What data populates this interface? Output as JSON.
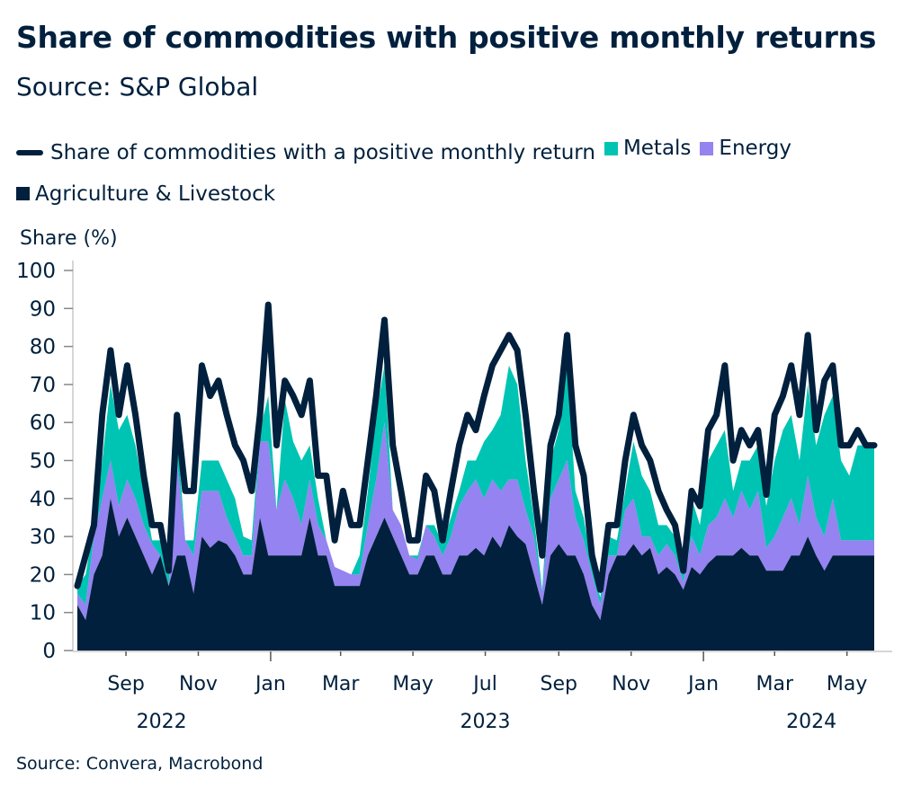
{
  "title": "Share of commodities with positive monthly returns",
  "subtitle": "Source: S&P Global",
  "footer": "Source: Convera, Macrobond",
  "colors": {
    "line": "#00203d",
    "metals": "#00c4b3",
    "energy": "#9483f0",
    "agriculture": "#00203d"
  },
  "chart_data": {
    "type": "area",
    "stacked": true,
    "ylabel": "Share (%)",
    "ylim": [
      0,
      100
    ],
    "yticks": [
      0,
      10,
      20,
      30,
      40,
      50,
      60,
      70,
      80,
      90,
      100
    ],
    "xlim": [
      "2022-07-22",
      "2024-05-24"
    ],
    "xticks": [
      {
        "date": "2022-09-01",
        "label": "Sep"
      },
      {
        "date": "2022-11-01",
        "label": "Nov"
      },
      {
        "date": "2023-01-01",
        "label": "Jan"
      },
      {
        "date": "2023-03-01",
        "label": "Mar"
      },
      {
        "date": "2023-05-01",
        "label": "May"
      },
      {
        "date": "2023-07-01",
        "label": "Jul"
      },
      {
        "date": "2023-09-01",
        "label": "Sep"
      },
      {
        "date": "2023-11-01",
        "label": "Nov"
      },
      {
        "date": "2024-01-01",
        "label": "Jan"
      },
      {
        "date": "2024-03-01",
        "label": "Mar"
      },
      {
        "date": "2024-05-01",
        "label": "May"
      }
    ],
    "year_labels": [
      {
        "date": "2022-10-01",
        "label": "2022"
      },
      {
        "date": "2023-07-01",
        "label": "2023"
      },
      {
        "date": "2024-04-01",
        "label": "2024"
      }
    ],
    "grid": false,
    "legend": "top",
    "x": [
      "2022-07-22",
      "2022-07-29",
      "2022-08-05",
      "2022-08-12",
      "2022-08-19",
      "2022-08-26",
      "2022-09-02",
      "2022-09-09",
      "2022-09-16",
      "2022-09-23",
      "2022-09-30",
      "2022-10-07",
      "2022-10-14",
      "2022-10-21",
      "2022-10-28",
      "2022-11-04",
      "2022-11-11",
      "2022-11-18",
      "2022-11-25",
      "2022-12-02",
      "2022-12-09",
      "2022-12-16",
      "2022-12-23",
      "2022-12-30",
      "2023-01-06",
      "2023-01-13",
      "2023-01-20",
      "2023-01-27",
      "2023-02-03",
      "2023-02-10",
      "2023-02-17",
      "2023-02-24",
      "2023-03-03",
      "2023-03-10",
      "2023-03-17",
      "2023-03-24",
      "2023-03-31",
      "2023-04-07",
      "2023-04-14",
      "2023-04-21",
      "2023-04-28",
      "2023-05-05",
      "2023-05-12",
      "2023-05-19",
      "2023-05-26",
      "2023-06-02",
      "2023-06-09",
      "2023-06-16",
      "2023-06-23",
      "2023-06-30",
      "2023-07-07",
      "2023-07-14",
      "2023-07-21",
      "2023-07-28",
      "2023-08-04",
      "2023-08-11",
      "2023-08-18",
      "2023-08-25",
      "2023-09-01",
      "2023-09-08",
      "2023-09-15",
      "2023-09-22",
      "2023-09-29",
      "2023-10-06",
      "2023-10-13",
      "2023-10-20",
      "2023-10-27",
      "2023-11-03",
      "2023-11-10",
      "2023-11-17",
      "2023-11-24",
      "2023-12-01",
      "2023-12-08",
      "2023-12-15",
      "2023-12-22",
      "2023-12-29",
      "2024-01-05",
      "2024-01-12",
      "2024-01-19",
      "2024-01-26",
      "2024-02-02",
      "2024-02-09",
      "2024-02-16",
      "2024-02-23",
      "2024-03-01",
      "2024-03-08",
      "2024-03-15",
      "2024-03-22",
      "2024-03-29",
      "2024-04-05",
      "2024-04-12",
      "2024-04-19",
      "2024-04-26",
      "2024-05-03",
      "2024-05-10",
      "2024-05-17",
      "2024-05-24"
    ],
    "series": [
      {
        "name": "Agriculture & Livestock",
        "kind": "area",
        "values": [
          12,
          8,
          20,
          25,
          40,
          30,
          35,
          30,
          25,
          20,
          25,
          17,
          25,
          25,
          15,
          30,
          27,
          29,
          28,
          25,
          20,
          20,
          35,
          25,
          25,
          25,
          25,
          25,
          35,
          25,
          25,
          17,
          17,
          17,
          17,
          25,
          30,
          35,
          30,
          25,
          20,
          20,
          25,
          25,
          20,
          20,
          25,
          25,
          27,
          25,
          30,
          27,
          33,
          30,
          28,
          20,
          12,
          25,
          28,
          25,
          25,
          20,
          12,
          8,
          20,
          25,
          25,
          28,
          25,
          27,
          20,
          22,
          20,
          16,
          22,
          20,
          23,
          25,
          25,
          25,
          27,
          25,
          25,
          21,
          21,
          21,
          25,
          25,
          30,
          25,
          21,
          25,
          25,
          25,
          25,
          25,
          25
        ]
      },
      {
        "name": "Energy",
        "kind": "area",
        "values": [
          3,
          4,
          10,
          15,
          10,
          8,
          10,
          10,
          8,
          8,
          0,
          0,
          25,
          4,
          10,
          12,
          15,
          13,
          7,
          5,
          5,
          5,
          20,
          30,
          12,
          20,
          15,
          8,
          10,
          8,
          4,
          5,
          4,
          3,
          3,
          8,
          15,
          25,
          7,
          8,
          5,
          4,
          8,
          5,
          5,
          10,
          13,
          17,
          18,
          15,
          15,
          15,
          12,
          15,
          9,
          10,
          3,
          15,
          17,
          25,
          10,
          9,
          8,
          4,
          5,
          0,
          12,
          12,
          5,
          3,
          5,
          6,
          5,
          2,
          8,
          5,
          10,
          10,
          15,
          10,
          15,
          12,
          17,
          6,
          9,
          14,
          15,
          8,
          16,
          10,
          9,
          15,
          4,
          4,
          4,
          4,
          4
        ]
      },
      {
        "name": "Metals",
        "kind": "area",
        "values": [
          2,
          8,
          3,
          10,
          20,
          20,
          17,
          14,
          9,
          1,
          4,
          3,
          8,
          0,
          4,
          8,
          8,
          8,
          10,
          10,
          5,
          4,
          3,
          12,
          0,
          21,
          15,
          17,
          9,
          7,
          0,
          0,
          0,
          0,
          5,
          9,
          17,
          15,
          0,
          0,
          0,
          1,
          0,
          3,
          3,
          5,
          4,
          8,
          5,
          15,
          13,
          20,
          30,
          25,
          13,
          5,
          1,
          10,
          13,
          25,
          7,
          6,
          2,
          2,
          5,
          4,
          5,
          15,
          16,
          12,
          8,
          5,
          5,
          2,
          10,
          8,
          17,
          19,
          18,
          7,
          8,
          13,
          12,
          11,
          20,
          23,
          22,
          17,
          24,
          19,
          32,
          27,
          21,
          17,
          25,
          25,
          25
        ]
      },
      {
        "name": "Share of commodities with a positive monthly return",
        "kind": "line",
        "values": [
          17,
          25,
          33,
          62,
          79,
          62,
          75,
          62,
          46,
          33,
          33,
          21,
          62,
          42,
          42,
          75,
          67,
          71,
          62,
          54,
          50,
          42,
          62,
          91,
          54,
          71,
          67,
          62,
          71,
          46,
          46,
          29,
          42,
          33,
          33,
          50,
          67,
          87,
          54,
          42,
          29,
          29,
          46,
          42,
          29,
          42,
          54,
          62,
          58,
          67,
          75,
          79,
          83,
          79,
          62,
          42,
          25,
          54,
          62,
          83,
          54,
          46,
          25,
          16,
          33,
          33,
          50,
          62,
          54,
          50,
          42,
          37,
          33,
          21,
          42,
          38,
          58,
          62,
          75,
          50,
          58,
          54,
          58,
          41,
          62,
          67,
          75,
          62,
          83,
          58,
          71,
          75,
          54,
          54,
          58,
          54,
          54
        ]
      }
    ]
  }
}
